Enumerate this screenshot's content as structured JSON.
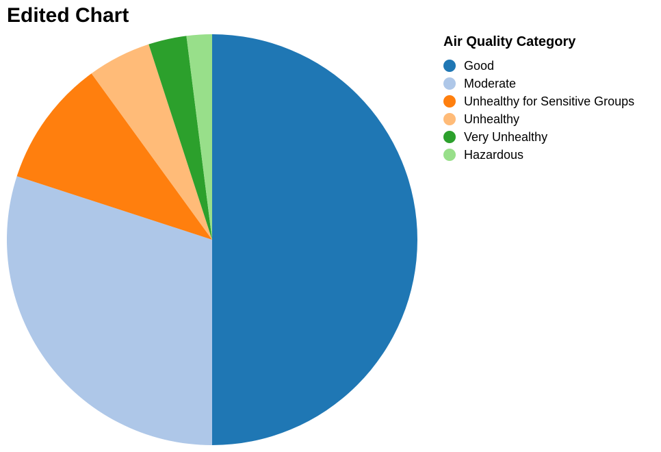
{
  "chart_data": {
    "type": "pie",
    "title": "Edited Chart",
    "legend_title": "Air Quality Category",
    "legend_position": "top-right",
    "slices": [
      {
        "label": "Good",
        "value": 50,
        "color": "#1f77b4"
      },
      {
        "label": "Moderate",
        "value": 30,
        "color": "#aec7e8"
      },
      {
        "label": "Unhealthy for Sensitive Groups",
        "value": 10,
        "color": "#ff7f0e"
      },
      {
        "label": "Unhealthy",
        "value": 5,
        "color": "#ffbb78"
      },
      {
        "label": "Very Unhealthy",
        "value": 3,
        "color": "#2ca02c"
      },
      {
        "label": "Hazardous",
        "value": 2,
        "color": "#98df8a"
      }
    ]
  }
}
